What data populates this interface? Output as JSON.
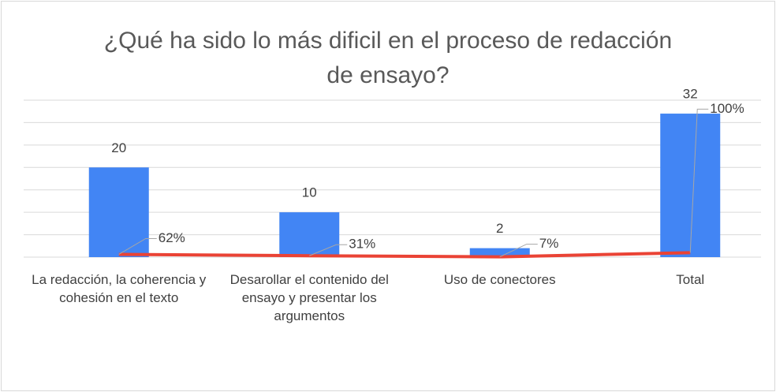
{
  "chart_data": {
    "type": "bar",
    "title": "¿Qué ha sido lo más dificil en el proceso de redacción de ensayo?",
    "categories": [
      "La redacción, la coherencia  y cohesión en el texto",
      "Desarollar el contenido del ensayo y presentar los argumentos",
      "Uso de conectores",
      "Total"
    ],
    "series": [
      {
        "type": "bar",
        "color": "#4285f4",
        "values": [
          20,
          10,
          2,
          32
        ]
      },
      {
        "type": "line",
        "color": "#ea4335",
        "values": [
          0.62,
          0.31,
          0.07,
          1
        ],
        "value_labels": [
          "62%",
          "31%",
          "7%",
          "100%"
        ]
      }
    ],
    "ylim": [
      0,
      35
    ],
    "yticks": [
      0,
      5,
      10,
      15,
      20,
      25,
      30,
      35
    ],
    "grid": true
  }
}
